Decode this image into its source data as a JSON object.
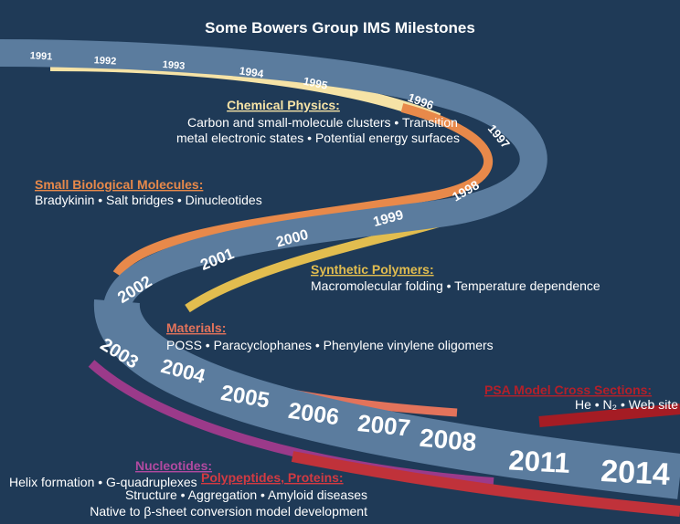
{
  "title": "Some Bowers Group IMS Milestones",
  "years": [
    "1991",
    "1992",
    "1993",
    "1994",
    "1995",
    "1996",
    "1997",
    "1998",
    "1999",
    "2000",
    "2001",
    "2002",
    "2003",
    "2004",
    "2005",
    "2006",
    "2007",
    "2008",
    "2011",
    "2014"
  ],
  "topics": [
    {
      "heading": "Chemical Physics:",
      "lines": [
        "Carbon and small-molecule clusters • Transition",
        "metal electronic states • Potential energy surfaces"
      ]
    },
    {
      "heading": "Small Biological Molecules:",
      "lines": [
        "Bradykinin • Salt bridges • Dinucleotides"
      ]
    },
    {
      "heading": "Synthetic Polymers:",
      "lines": [
        "Macromolecular folding • Temperature dependence"
      ]
    },
    {
      "heading": "Materials:",
      "lines": [
        "POSS • Paracyclophanes • Phenylene vinylene oligomers"
      ]
    },
    {
      "heading": "PSA Model Cross Sections:",
      "lines": [
        "He • N₂ • Web site"
      ]
    },
    {
      "heading": "Nucleotides:",
      "lines": [
        "Helix formation • G-quadruplexes"
      ]
    },
    {
      "heading": "Polypeptides, Proteins:",
      "lines": [
        "Structure • Aggregation • Amyloid diseases",
        "Native to β-sheet conversion model development"
      ]
    }
  ]
}
